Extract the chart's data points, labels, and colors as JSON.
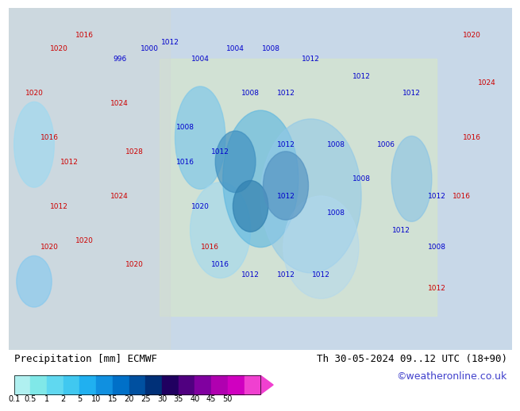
{
  "title_left": "Precipitation [mm] ECMWF",
  "title_right": "Th 30-05-2024 09..12 UTC (18+90)",
  "credit": "©weatheronline.co.uk",
  "colorbar_labels": [
    "0.1",
    "0.5",
    "1",
    "2",
    "5",
    "10",
    "15",
    "20",
    "25",
    "30",
    "35",
    "40",
    "45",
    "50"
  ],
  "colorbar_colors": [
    "#b0f0f0",
    "#80e8e8",
    "#60d8f0",
    "#40c8f0",
    "#20b0f0",
    "#1090e0",
    "#0070c8",
    "#0050a0",
    "#003078",
    "#200060",
    "#500080",
    "#8000a0",
    "#b000b0",
    "#d000c0",
    "#f040d0"
  ],
  "background_color": "#ffffff",
  "map_background": "#e8e8e8",
  "label_fontsize": 9,
  "credit_color": "#4040cc",
  "title_fontsize": 9
}
